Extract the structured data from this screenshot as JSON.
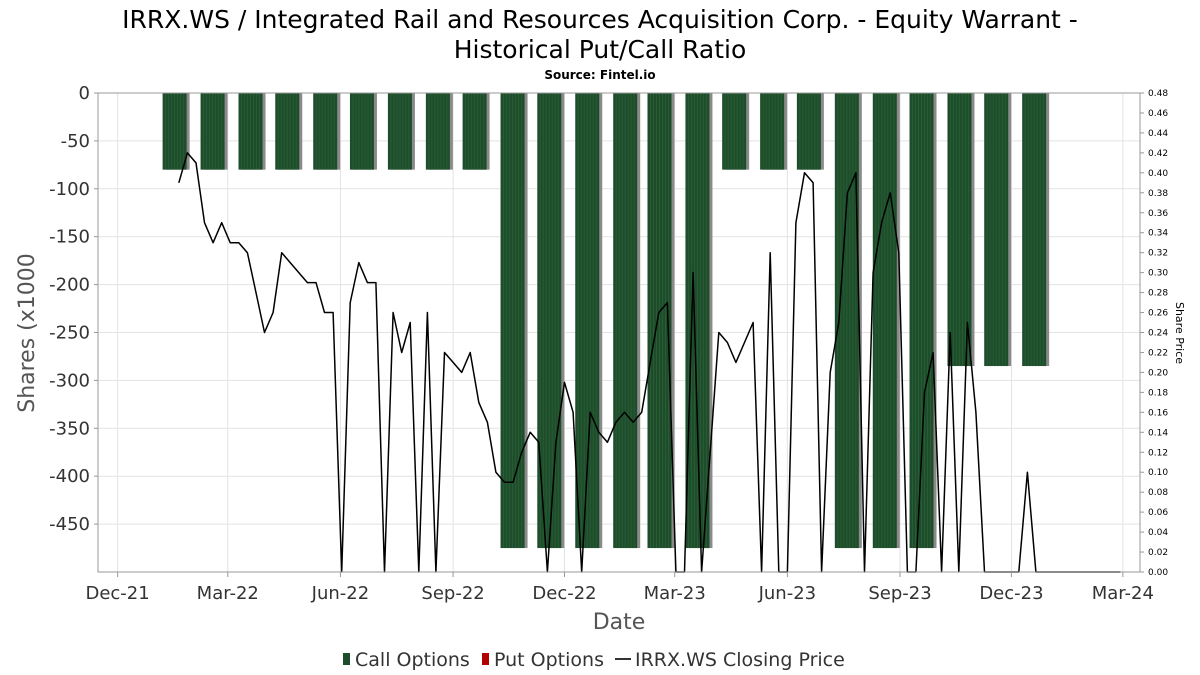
{
  "chart_data": {
    "type": "bar",
    "title_line1": "IRRX.WS / Integrated Rail and Resources Acquisition Corp. - Equity Warrant -",
    "title_line2": "Historical Put/Call Ratio",
    "subtitle": "Source: Fintel.io",
    "xlabel": "Date",
    "ylabel": "Shares (x1000",
    "y2label": "Share Price",
    "ylim": [
      -500,
      0
    ],
    "y2lim": [
      0,
      0.48
    ],
    "yticks": [
      0,
      -50,
      -100,
      -150,
      -200,
      -250,
      -300,
      -350,
      -400,
      -450
    ],
    "y2ticks": [
      "0.48",
      "0.46",
      "0.44",
      "0.42",
      "0.40",
      "0.38",
      "0.36",
      "0.34",
      "0.32",
      "0.30",
      "0.28",
      "0.26",
      "0.24",
      "0.22",
      "0.20",
      "0.18",
      "0.16",
      "0.14",
      "0.12",
      "0.10",
      "0.08",
      "0.06",
      "0.04",
      "0.02",
      "0.00"
    ],
    "xticks": [
      "Dec-21",
      "Mar-22",
      "Jun-22",
      "Sep-22",
      "Dec-22",
      "Mar-23",
      "Jun-23",
      "Sep-23",
      "Dec-23",
      "Mar-24"
    ],
    "x_range": [
      "2021-11-15",
      "2024-03-15"
    ],
    "grid": true,
    "series": [
      {
        "name": "Call Options",
        "color": "#1e4d2b",
        "points": [
          {
            "date": "2022-01-28",
            "value": -80
          },
          {
            "date": "2022-02-28",
            "value": -80
          },
          {
            "date": "2022-03-31",
            "value": -80
          },
          {
            "date": "2022-04-30",
            "value": -80
          },
          {
            "date": "2022-05-31",
            "value": -80
          },
          {
            "date": "2022-06-30",
            "value": -80
          },
          {
            "date": "2022-07-31",
            "value": -80
          },
          {
            "date": "2022-08-31",
            "value": -80
          },
          {
            "date": "2022-09-30",
            "value": -80
          },
          {
            "date": "2022-10-31",
            "value": -475
          },
          {
            "date": "2022-11-30",
            "value": -475
          },
          {
            "date": "2022-12-31",
            "value": -475
          },
          {
            "date": "2023-01-31",
            "value": -475
          },
          {
            "date": "2023-02-28",
            "value": -475
          },
          {
            "date": "2023-03-31",
            "value": -475
          },
          {
            "date": "2023-04-30",
            "value": -80
          },
          {
            "date": "2023-05-31",
            "value": -80
          },
          {
            "date": "2023-06-30",
            "value": -80
          },
          {
            "date": "2023-07-31",
            "value": -475
          },
          {
            "date": "2023-08-31",
            "value": -475
          },
          {
            "date": "2023-09-30",
            "value": -475
          },
          {
            "date": "2023-10-31",
            "value": -285
          },
          {
            "date": "2023-11-30",
            "value": -285
          },
          {
            "date": "2023-12-31",
            "value": -285
          }
        ]
      },
      {
        "name": "Put Options",
        "color": "#b30000",
        "points": []
      },
      {
        "name": "IRRX.WS Closing Price",
        "color": "#000000",
        "axis": "right",
        "points": [
          [
            "2022-01-20",
            0.39
          ],
          [
            "2022-01-27",
            0.42
          ],
          [
            "2022-02-03",
            0.41
          ],
          [
            "2022-02-10",
            0.35
          ],
          [
            "2022-02-17",
            0.33
          ],
          [
            "2022-02-24",
            0.35
          ],
          [
            "2022-03-03",
            0.33
          ],
          [
            "2022-03-10",
            0.33
          ],
          [
            "2022-03-17",
            0.32
          ],
          [
            "2022-03-24",
            0.28
          ],
          [
            "2022-03-31",
            0.24
          ],
          [
            "2022-04-07",
            0.26
          ],
          [
            "2022-04-14",
            0.32
          ],
          [
            "2022-04-21",
            0.31
          ],
          [
            "2022-04-28",
            0.3
          ],
          [
            "2022-05-05",
            0.29
          ],
          [
            "2022-05-12",
            0.29
          ],
          [
            "2022-05-19",
            0.26
          ],
          [
            "2022-05-26",
            0.26
          ],
          [
            "2022-06-02",
            0.0
          ],
          [
            "2022-06-09",
            0.27
          ],
          [
            "2022-06-16",
            0.31
          ],
          [
            "2022-06-23",
            0.29
          ],
          [
            "2022-06-30",
            0.29
          ],
          [
            "2022-07-07",
            0.0
          ],
          [
            "2022-07-14",
            0.26
          ],
          [
            "2022-07-21",
            0.22
          ],
          [
            "2022-07-28",
            0.25
          ],
          [
            "2022-08-04",
            0.0
          ],
          [
            "2022-08-11",
            0.26
          ],
          [
            "2022-08-18",
            0.0
          ],
          [
            "2022-08-25",
            0.22
          ],
          [
            "2022-09-01",
            0.21
          ],
          [
            "2022-09-08",
            0.2
          ],
          [
            "2022-09-15",
            0.22
          ],
          [
            "2022-09-22",
            0.17
          ],
          [
            "2022-09-29",
            0.15
          ],
          [
            "2022-10-06",
            0.1
          ],
          [
            "2022-10-13",
            0.09
          ],
          [
            "2022-10-20",
            0.09
          ],
          [
            "2022-10-27",
            0.12
          ],
          [
            "2022-11-03",
            0.14
          ],
          [
            "2022-11-10",
            0.13
          ],
          [
            "2022-11-17",
            0.0
          ],
          [
            "2022-11-24",
            0.13
          ],
          [
            "2022-12-01",
            0.19
          ],
          [
            "2022-12-08",
            0.16
          ],
          [
            "2022-12-15",
            0.0
          ],
          [
            "2022-12-22",
            0.16
          ],
          [
            "2022-12-29",
            0.14
          ],
          [
            "2023-01-05",
            0.13
          ],
          [
            "2023-01-12",
            0.15
          ],
          [
            "2023-01-19",
            0.16
          ],
          [
            "2023-01-26",
            0.15
          ],
          [
            "2023-02-02",
            0.16
          ],
          [
            "2023-02-09",
            0.21
          ],
          [
            "2023-02-16",
            0.26
          ],
          [
            "2023-02-23",
            0.27
          ],
          [
            "2023-03-02",
            0.0
          ],
          [
            "2023-03-09",
            0.0
          ],
          [
            "2023-03-16",
            0.3
          ],
          [
            "2023-03-23",
            0.0
          ],
          [
            "2023-04-06",
            0.24
          ],
          [
            "2023-04-13",
            0.23
          ],
          [
            "2023-04-20",
            0.21
          ],
          [
            "2023-04-27",
            0.23
          ],
          [
            "2023-05-04",
            0.25
          ],
          [
            "2023-05-11",
            0.0
          ],
          [
            "2023-05-18",
            0.32
          ],
          [
            "2023-05-25",
            0.0
          ],
          [
            "2023-06-01",
            0.0
          ],
          [
            "2023-06-08",
            0.35
          ],
          [
            "2023-06-15",
            0.4
          ],
          [
            "2023-06-22",
            0.39
          ],
          [
            "2023-06-29",
            0.0
          ],
          [
            "2023-07-06",
            0.2
          ],
          [
            "2023-07-13",
            0.25
          ],
          [
            "2023-07-20",
            0.38
          ],
          [
            "2023-07-27",
            0.4
          ],
          [
            "2023-08-03",
            0.0
          ],
          [
            "2023-08-10",
            0.3
          ],
          [
            "2023-08-17",
            0.35
          ],
          [
            "2023-08-24",
            0.38
          ],
          [
            "2023-08-31",
            0.32
          ],
          [
            "2023-09-07",
            0.0
          ],
          [
            "2023-09-14",
            0.0
          ],
          [
            "2023-09-21",
            0.18
          ],
          [
            "2023-09-28",
            0.22
          ],
          [
            "2023-10-05",
            0.0
          ],
          [
            "2023-10-12",
            0.24
          ],
          [
            "2023-10-19",
            0.0
          ],
          [
            "2023-10-26",
            0.25
          ],
          [
            "2023-11-02",
            0.16
          ],
          [
            "2023-11-09",
            0.0
          ],
          [
            "2023-11-30",
            0.0
          ],
          [
            "2023-12-07",
            0.0
          ],
          [
            "2023-12-14",
            0.1
          ],
          [
            "2023-12-21",
            0.0
          ],
          [
            "2024-01-04",
            0.0
          ],
          [
            "2024-02-01",
            0.0
          ],
          [
            "2024-02-28",
            0.0
          ]
        ]
      }
    ],
    "legend": {
      "placement": "bottom-center",
      "items": [
        {
          "label": "Call Options",
          "color": "#1e4d2b",
          "marker": "square"
        },
        {
          "label": "Put Options",
          "color": "#b30000",
          "marker": "square"
        },
        {
          "label": "IRRX.WS Closing Price",
          "color": "#000000",
          "marker": "line"
        }
      ]
    }
  }
}
